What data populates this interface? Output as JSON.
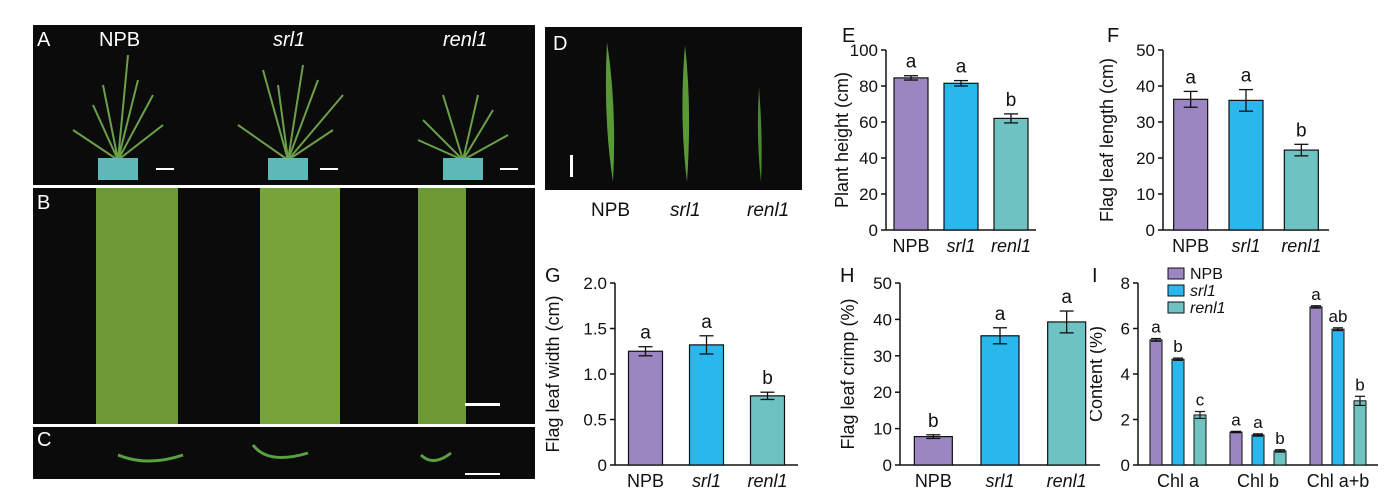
{
  "panels": {
    "A": {
      "label": "A",
      "genotypes": [
        "NPB",
        "srl1",
        "renl1"
      ]
    },
    "B": {
      "label": "B"
    },
    "C": {
      "label": "C"
    },
    "D": {
      "label": "D",
      "genotypes": [
        "NPB",
        "srl1",
        "renl1"
      ]
    }
  },
  "colors": {
    "NPB": "#9b86c2",
    "srl1": "#29b7ee",
    "renl1": "#6fc2c2"
  },
  "chart_data": [
    {
      "panel": "E",
      "type": "bar",
      "categories": [
        "NPB",
        "srl1",
        "renl1"
      ],
      "values": [
        84.5,
        81.5,
        62
      ],
      "errors": [
        1.2,
        1.5,
        2.5
      ],
      "letters": [
        "a",
        "a",
        "b"
      ],
      "ylabel": "Plant height (cm)",
      "ylim": [
        0,
        100
      ],
      "yticks": [
        0,
        20,
        40,
        60,
        80,
        100
      ]
    },
    {
      "panel": "F",
      "type": "bar",
      "categories": [
        "NPB",
        "srl1",
        "renl1"
      ],
      "values": [
        36.3,
        36,
        22.2
      ],
      "errors": [
        2.2,
        3,
        1.6
      ],
      "letters": [
        "a",
        "a",
        "b"
      ],
      "ylabel": "Flag leaf length (cm)",
      "ylim": [
        0,
        50
      ],
      "yticks": [
        0,
        10,
        20,
        30,
        40,
        50
      ]
    },
    {
      "panel": "G",
      "type": "bar",
      "categories": [
        "NPB",
        "srl1",
        "renl1"
      ],
      "values": [
        1.25,
        1.32,
        0.76
      ],
      "errors": [
        0.05,
        0.1,
        0.04
      ],
      "letters": [
        "a",
        "a",
        "b"
      ],
      "ylabel": "Flag leaf width (cm)",
      "ylim": [
        0,
        2
      ],
      "yticks": [
        "0",
        "0.5",
        "1.0",
        "1.5",
        "2.0"
      ]
    },
    {
      "panel": "H",
      "type": "bar",
      "categories": [
        "NPB",
        "srl1",
        "renl1"
      ],
      "values": [
        7.8,
        35.5,
        39.3
      ],
      "errors": [
        0.5,
        2.2,
        3
      ],
      "letters": [
        "b",
        "a",
        "a"
      ],
      "ylabel": "Flag leaf crimp (%)",
      "ylim": [
        0,
        50
      ],
      "yticks": [
        0,
        10,
        20,
        30,
        40,
        50
      ]
    },
    {
      "panel": "I",
      "type": "bar",
      "categories": [
        "Chl a",
        "Chl b",
        "Chl a+b"
      ],
      "ylabel": "Content (%)",
      "ylim": [
        0,
        8
      ],
      "yticks": [
        0,
        2,
        4,
        6,
        8
      ],
      "legend": "top-left",
      "series": [
        {
          "name": "NPB",
          "values": [
            5.5,
            1.45,
            6.95
          ],
          "errors": [
            0.06,
            0.03,
            0.05
          ],
          "letters": [
            "a",
            "a",
            "a"
          ]
        },
        {
          "name": "srl1",
          "values": [
            4.65,
            1.32,
            5.97
          ],
          "errors": [
            0.05,
            0.05,
            0.06
          ],
          "letters": [
            "b",
            "a",
            "ab"
          ]
        },
        {
          "name": "renl1",
          "values": [
            2.2,
            0.62,
            2.82
          ],
          "errors": [
            0.15,
            0.05,
            0.2
          ],
          "letters": [
            "c",
            "b",
            "b"
          ]
        }
      ]
    }
  ]
}
